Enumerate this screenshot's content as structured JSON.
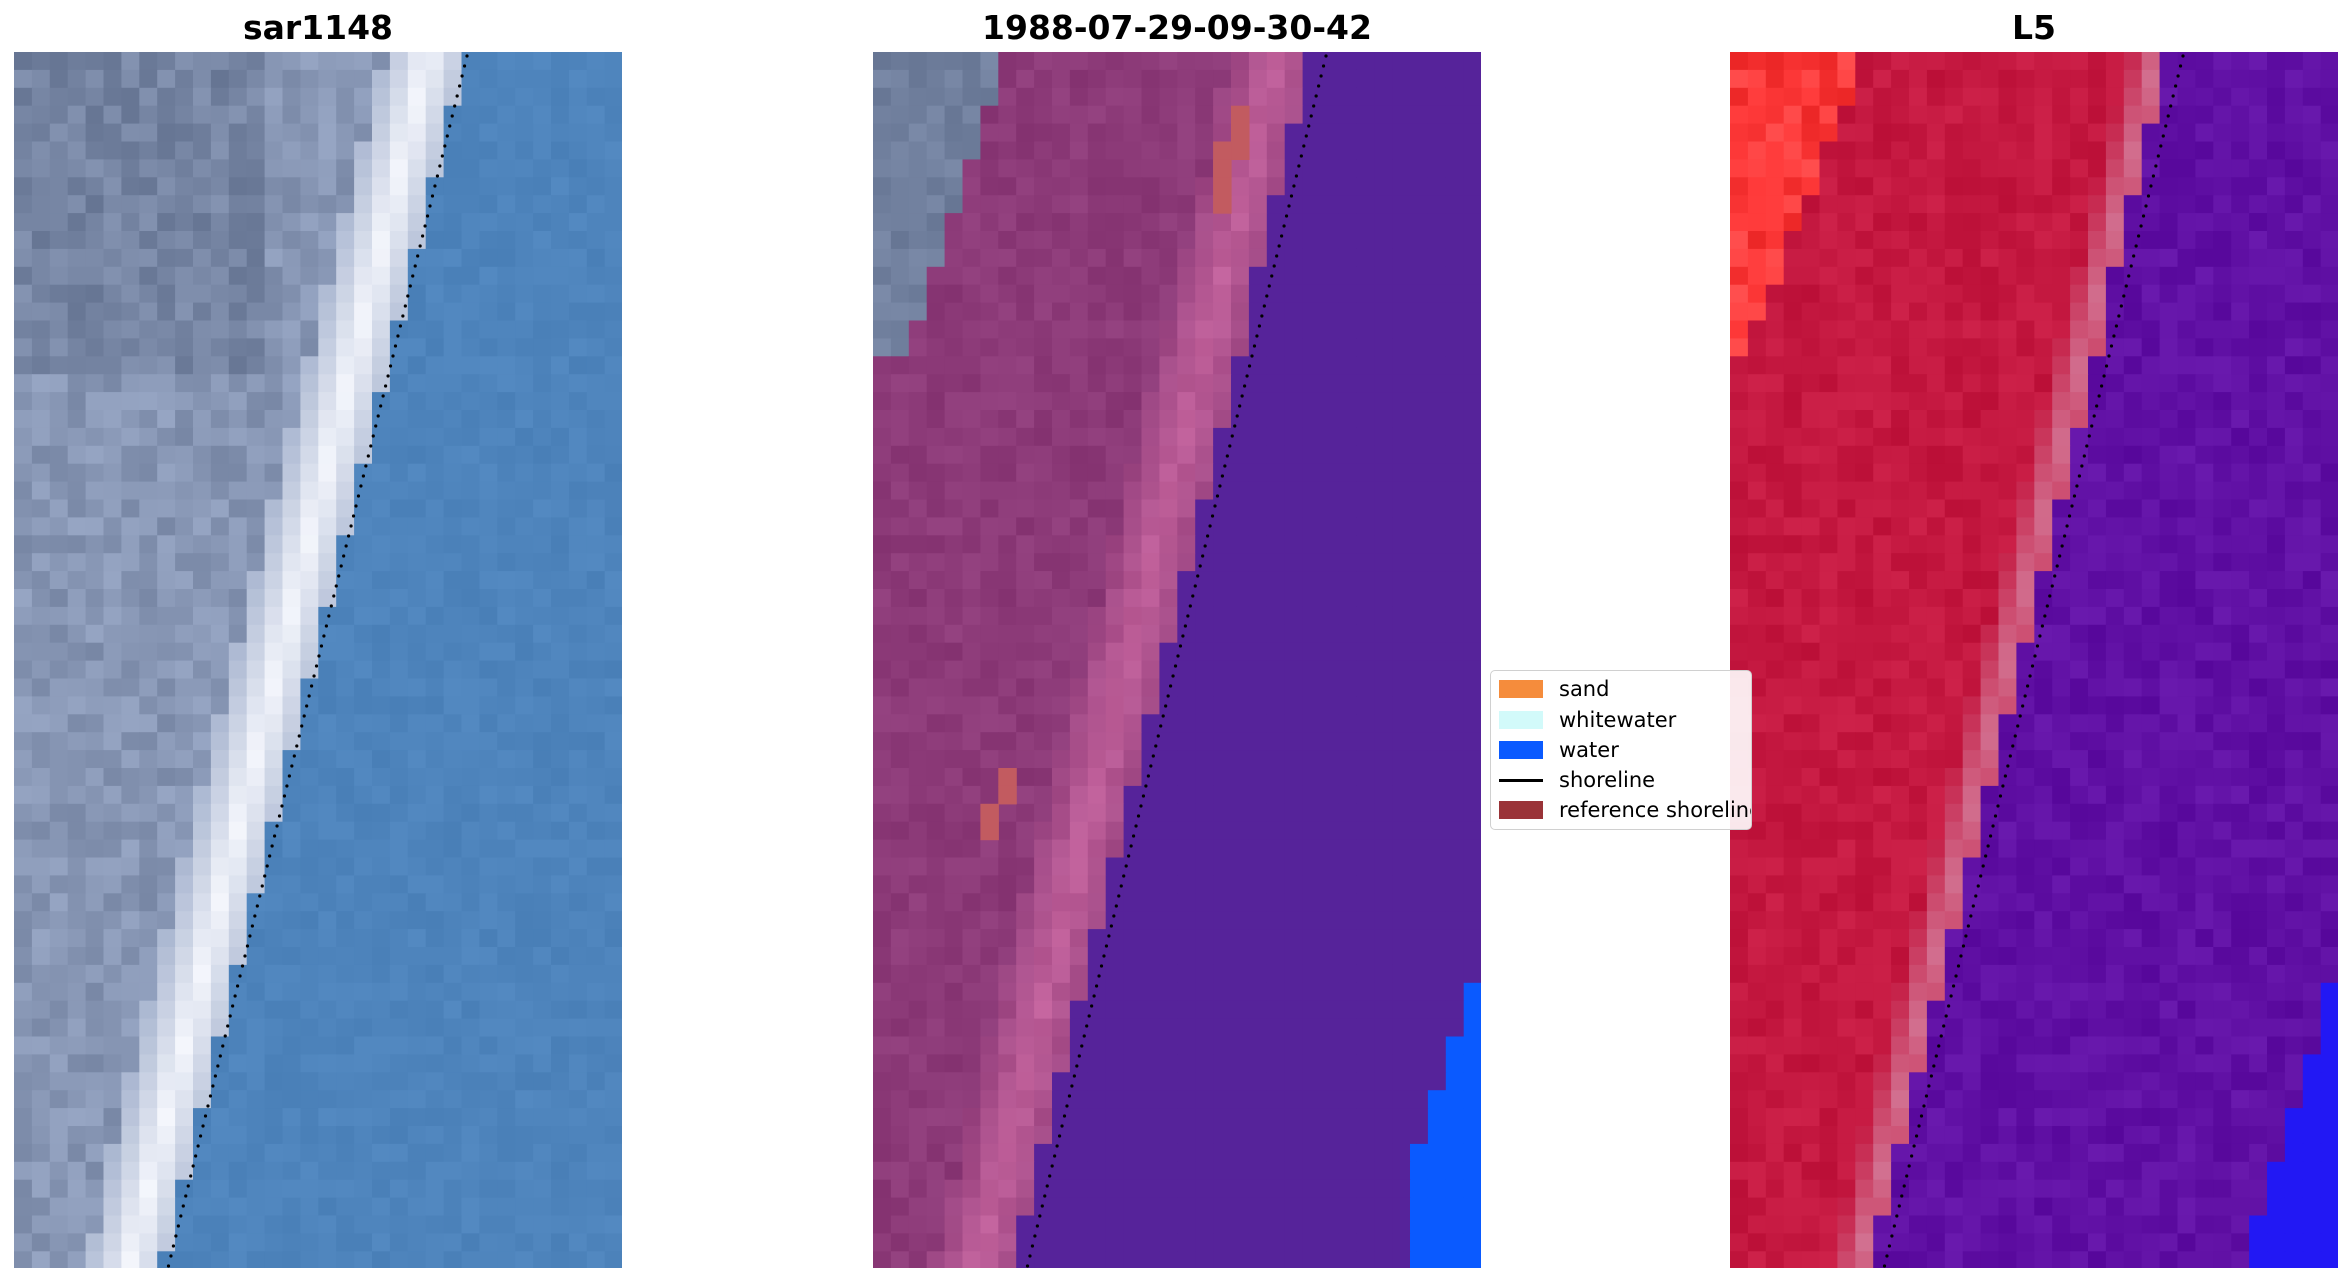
{
  "panels": [
    {
      "title": "sar1148"
    },
    {
      "title": "1988-07-29-09-30-42"
    },
    {
      "title": "L5"
    }
  ],
  "legend": {
    "items": [
      {
        "label": "sand",
        "color": "#f58c3c",
        "icon": "filled-swatch"
      },
      {
        "label": "whitewater",
        "color": "#d2fafa",
        "icon": "filled-swatch"
      },
      {
        "label": "water",
        "color": "#0a5aff",
        "icon": "filled-swatch"
      },
      {
        "label": "shoreline",
        "color": "#000000",
        "icon": "line-swatch"
      },
      {
        "label": "reference shoreline",
        "color": "#9a3338",
        "icon": "filled-swatch"
      }
    ]
  },
  "colors": {
    "rgb_land": "#8796b4",
    "rgb_water": "#4e84bc",
    "rgb_foam": "#f4f6fc",
    "classified_land": "#8c3a78",
    "classified_beach": "#c0609a",
    "classified_water": "#56239a",
    "index_land": "#c41840",
    "index_water": "#6010a4",
    "index_sea_edge": "#2218f4"
  }
}
